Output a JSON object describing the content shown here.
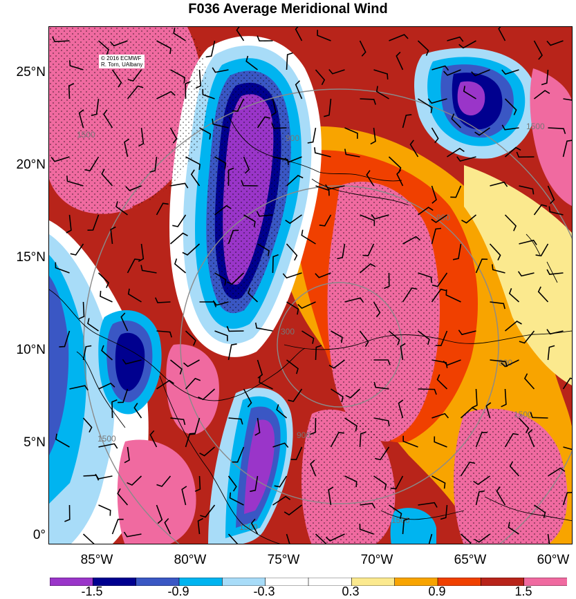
{
  "title": "F036 Average Meridional Wind",
  "credit": {
    "line1": "© 2016 ECMWF",
    "line2": "R. Torn, UAlbany"
  },
  "lat_labels": [
    "25°N",
    "20°N",
    "15°N",
    "10°N",
    "5°N",
    "0°"
  ],
  "lon_labels": [
    "85°W",
    "80°W",
    "75°W",
    "70°W",
    "65°W",
    "60°W"
  ],
  "range_ring_labels": [
    "300",
    "900",
    "1500"
  ],
  "colorbar": {
    "colors": [
      "#9a35c9",
      "#00008f",
      "#3a57c4",
      "#00b4f0",
      "#a8dcf8",
      "#ffffff",
      "#ffffff",
      "#fbe98e",
      "#f8a400",
      "#f04000",
      "#b8241a",
      "#f06aa0"
    ],
    "tick_labels": [
      "-1.5",
      "-0.9",
      "-0.3",
      "0.3",
      "0.9",
      "1.5"
    ]
  },
  "map_colors": {
    "purple": "#9a35c9",
    "navy": "#00008f",
    "blue": "#3a57c4",
    "cyan": "#00b4f0",
    "lightblue": "#a8dcf8",
    "yellow": "#fbe98e",
    "orange": "#f8a400",
    "redorange": "#f04000",
    "darkred": "#b8241a",
    "pink": "#f06aa0"
  }
}
